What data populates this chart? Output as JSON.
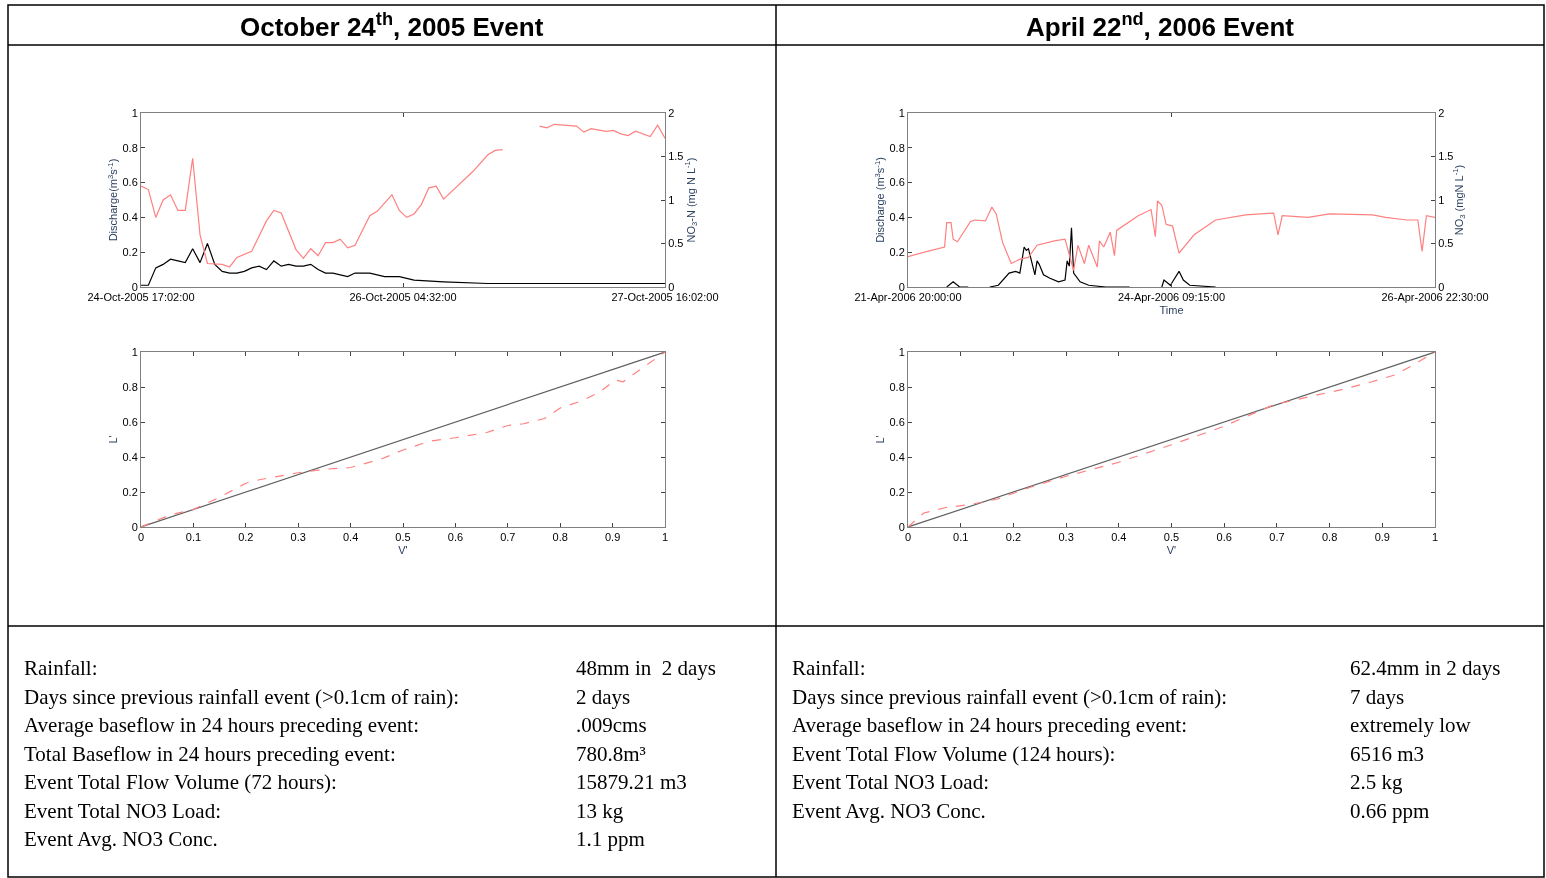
{
  "chart_data": [
    {
      "type": "line",
      "title": "October 24$^{th}$, 2005 Event",
      "ylabel": "Discharge(m$^{3}$s$^{-1}$)",
      "y2label": "NO$_{3}$-N (mg N L$^{-1}$)",
      "xlim": [
        "2005-10-24T17:02",
        "2005-10-27T16:02"
      ],
      "xticks": [
        {
          "value": "2005-10-24T17:02",
          "label": "24-Oct-2005 17:02:00"
        },
        {
          "value": "2005-10-26T04:32",
          "label": "26-Oct-2005 04:32:00"
        },
        {
          "value": "2005-10-27T16:02",
          "label": "27-Oct-2005 16:02:00"
        }
      ],
      "ylim": [
        0,
        1
      ],
      "yticks": [
        0,
        0.2,
        0.4,
        0.6,
        0.8,
        1
      ],
      "y2lim": [
        0,
        2
      ],
      "y2ticks": [
        0,
        0.5,
        1,
        1.5,
        2
      ],
      "series": [
        {
          "color": "#000000",
          "x": [
            "2005-10-24T17:02",
            "2005-10-24T18:02",
            "2005-10-24T19:02",
            "2005-10-24T20:02",
            "2005-10-24T21:02",
            "2005-10-24T22:02",
            "2005-10-24T23:02",
            "2005-10-25T00:02",
            "2005-10-25T01:02",
            "2005-10-25T02:02",
            "2005-10-25T03:02",
            "2005-10-25T04:02",
            "2005-10-25T05:02",
            "2005-10-25T06:02",
            "2005-10-25T07:02",
            "2005-10-25T08:02",
            "2005-10-25T09:02",
            "2005-10-25T10:02",
            "2005-10-25T11:02",
            "2005-10-25T12:02",
            "2005-10-25T13:02",
            "2005-10-25T14:02",
            "2005-10-25T15:02",
            "2005-10-25T16:02",
            "2005-10-25T17:02",
            "2005-10-25T18:02",
            "2005-10-25T19:02",
            "2005-10-25T21:02",
            "2005-10-25T22:02",
            "2005-10-26T00:02",
            "2005-10-26T02:02",
            "2005-10-26T04:02",
            "2005-10-26T06:02",
            "2005-10-26T10:02",
            "2005-10-26T16:02",
            "2005-10-27T00:02",
            "2005-10-27T10:02",
            "2005-10-27T16:02"
          ],
          "values": [
            0.01,
            0.01,
            0.11,
            0.13,
            0.16,
            0.15,
            0.14,
            0.22,
            0.14,
            0.25,
            0.13,
            0.09,
            0.08,
            0.08,
            0.09,
            0.11,
            0.12,
            0.1,
            0.15,
            0.12,
            0.13,
            0.12,
            0.12,
            0.13,
            0.1,
            0.08,
            0.08,
            0.06,
            0.08,
            0.08,
            0.06,
            0.06,
            0.04,
            0.03,
            0.02,
            0.02,
            0.02,
            0.02
          ]
        },
        {
          "color": "#ff8080",
          "axis": "y2",
          "x": [
            "2005-10-24T17:02",
            "2005-10-24T18:02",
            "2005-10-24T19:02",
            "2005-10-24T20:02",
            "2005-10-24T21:02",
            "2005-10-24T22:02",
            "2005-10-24T23:02",
            "2005-10-25T00:02",
            "2005-10-25T01:02",
            "2005-10-25T02:02",
            "2005-10-25T04:02",
            "2005-10-25T05:02",
            "2005-10-25T06:02",
            "2005-10-25T08:02",
            "2005-10-25T10:02",
            "2005-10-25T11:02",
            "2005-10-25T12:02",
            "2005-10-25T14:02",
            "2005-10-25T15:02",
            "2005-10-25T16:02",
            "2005-10-25T17:02",
            "2005-10-25T18:02",
            "2005-10-25T19:02",
            "2005-10-25T20:02",
            "2005-10-25T21:02",
            "2005-10-25T22:02",
            "2005-10-26T00:02",
            "2005-10-26T01:02",
            "2005-10-26T03:02",
            "2005-10-26T04:02",
            "2005-10-26T05:02",
            "2005-10-26T06:02",
            "2005-10-26T07:02",
            "2005-10-26T08:02",
            "2005-10-26T09:02",
            "2005-10-26T10:02",
            "2005-10-26T14:02",
            "2005-10-26T16:02",
            "2005-10-26T17:02",
            "2005-10-26T18:02",
            "2005-10-26T21:02",
            "2005-10-26T23:02",
            "2005-10-27T00:02",
            "2005-10-27T01:02",
            "2005-10-27T04:02",
            "2005-10-27T05:02",
            "2005-10-27T06:02",
            "2005-10-27T08:02",
            "2005-10-27T09:02",
            "2005-10-27T10:02",
            "2005-10-27T11:02",
            "2005-10-27T12:02",
            "2005-10-27T14:02",
            "2005-10-27T15:02",
            "2005-10-27T16:02"
          ],
          "values": [
            1.16,
            1.12,
            0.8,
            1.0,
            1.06,
            0.88,
            0.88,
            1.48,
            0.6,
            0.27,
            0.26,
            0.23,
            0.34,
            0.41,
            0.76,
            0.88,
            0.85,
            0.43,
            0.33,
            0.44,
            0.36,
            0.51,
            0.51,
            0.55,
            0.45,
            0.48,
            0.82,
            0.87,
            1.06,
            0.88,
            0.8,
            0.84,
            0.95,
            1.14,
            1.16,
            1.01,
            1.33,
            1.52,
            1.57,
            1.58,
            null,
            1.85,
            1.83,
            1.87,
            1.85,
            1.78,
            1.82,
            1.79,
            1.8,
            1.76,
            1.74,
            1.79,
            1.73,
            1.86,
            1.71
          ]
        }
      ]
    },
    {
      "type": "line",
      "title": "April 22$^{nd}$, 2006 Event",
      "xlabel": "Time",
      "ylabel": "Discharge (m$^{3}$s$^{-1}$)",
      "y2label": "NO$_{3}$ (mgN L$^{-1}$)",
      "xlim": [
        "2006-04-21T20:00",
        "2006-04-26T22:30"
      ],
      "xticks": [
        {
          "value": "2006-04-21T20:00",
          "label": "21-Apr-2006 20:00:00"
        },
        {
          "value": "2006-04-24T09:15",
          "label": "24-Apr-2006 09:15:00"
        },
        {
          "value": "2006-04-26T22:30",
          "label": "26-Apr-2006 22:30:00"
        }
      ],
      "ylim": [
        0,
        1
      ],
      "yticks": [
        0,
        0.2,
        0.4,
        0.6,
        0.8,
        1
      ],
      "y2lim": [
        0,
        2
      ],
      "y2ticks": [
        0,
        0.5,
        1,
        1.5,
        2
      ],
      "series": [
        {
          "color": "#ff8080",
          "axis": "y2",
          "x": [
            "2006-04-21T20:00",
            "2006-04-22T00:30",
            "2006-04-22T04:30",
            "2006-04-22T05:00",
            "2006-04-22T06:00",
            "2006-04-22T06:30",
            "2006-04-22T07:30",
            "2006-04-22T10:30",
            "2006-04-22T11:30",
            "2006-04-22T14:00",
            "2006-04-22T15:30",
            "2006-04-22T16:30",
            "2006-04-22T18:00",
            "2006-04-22T20:00",
            "2006-04-22T22:00",
            "2006-04-23T00:00",
            "2006-04-23T02:00",
            "2006-04-23T06:00",
            "2006-04-23T08:30",
            "2006-04-23T10:30",
            "2006-04-23T11:30",
            "2006-04-23T13:00",
            "2006-04-23T14:00",
            "2006-04-23T16:00",
            "2006-04-23T16:30",
            "2006-04-23T17:30",
            "2006-04-23T19:00",
            "2006-04-23T20:00",
            "2006-04-23T20:30",
            "2006-04-24T01:30",
            "2006-04-24T04:30",
            "2006-04-24T05:30",
            "2006-04-24T06:00",
            "2006-04-24T07:00",
            "2006-04-24T08:00",
            "2006-04-24T09:30",
            "2006-04-24T11:00",
            "2006-04-24T14:30",
            "2006-04-24T19:30",
            "2006-04-25T02:30",
            "2006-04-25T09:00",
            "2006-04-25T10:00",
            "2006-04-25T11:00",
            "2006-04-25T17:00",
            "2006-04-25T22:00",
            "2006-04-26T08:00",
            "2006-04-26T11:00",
            "2006-04-26T16:00",
            "2006-04-26T18:30",
            "2006-04-26T19:30",
            "2006-04-26T20:30",
            "2006-04-26T22:30"
          ],
          "values": [
            0.35,
            0.41,
            0.46,
            0.74,
            0.74,
            0.55,
            0.52,
            0.75,
            0.77,
            0.76,
            0.92,
            0.84,
            0.51,
            0.27,
            0.32,
            0.34,
            0.48,
            0.53,
            0.55,
            0.19,
            0.48,
            0.27,
            0.48,
            0.23,
            0.53,
            0.46,
            0.63,
            0.36,
            0.65,
            0.82,
            0.89,
            0.58,
            0.99,
            0.94,
            0.72,
            0.7,
            0.39,
            0.6,
            0.77,
            0.83,
            0.85,
            0.6,
            0.82,
            0.8,
            0.84,
            0.83,
            0.8,
            0.77,
            0.77,
            0.41,
            0.82,
            0.8
          ]
        },
        {
          "color": "#000000",
          "x": [
            "2006-04-22T05:00",
            "2006-04-22T06:30",
            "2006-04-22T08:00",
            "2006-04-22T10:00",
            "2006-04-22T12:00",
            "2006-04-22T15:00",
            "2006-04-22T17:00",
            "2006-04-22T19:30",
            "2006-04-22T21:00",
            "2006-04-22T22:00",
            "2006-04-22T23:00",
            "2006-04-22T23:30",
            "2006-04-23T00:00",
            "2006-04-23T00:30",
            "2006-04-23T01:30",
            "2006-04-23T02:00",
            "2006-04-23T02:30",
            "2006-04-23T03:30",
            "2006-04-23T05:00",
            "2006-04-23T07:00",
            "2006-04-23T08:30",
            "2006-04-23T09:00",
            "2006-04-23T09:30",
            "2006-04-23T10:00",
            "2006-04-23T10:30",
            "2006-04-23T12:00",
            "2006-04-23T14:00",
            "2006-04-23T18:00",
            "2006-04-23T23:30",
            "2006-04-24T03:00",
            "2006-04-24T07:00",
            "2006-04-24T07:30",
            "2006-04-24T09:00",
            "2006-04-24T09:30",
            "2006-04-24T11:00",
            "2006-04-24T12:00",
            "2006-04-24T13:30",
            "2006-04-24T19:30"
          ],
          "values": [
            0.0,
            0.03,
            0.0,
            0.0,
            null,
            0.0,
            0.01,
            0.08,
            0.09,
            0.08,
            0.23,
            0.21,
            0.22,
            0.17,
            0.07,
            0.15,
            0.13,
            0.07,
            0.05,
            0.03,
            0.04,
            0.15,
            0.12,
            0.34,
            0.08,
            0.03,
            0.01,
            0.0,
            0.0,
            null,
            0.0,
            0.04,
            0.01,
            0.03,
            0.09,
            0.04,
            0.01,
            0.0
          ]
        }
      ]
    },
    {
      "type": "line",
      "xlabel": "V'",
      "ylabel": "L'",
      "xlim": [
        0,
        1
      ],
      "xticks": [
        0,
        0.1,
        0.2,
        0.3,
        0.4,
        0.5,
        0.6,
        0.7,
        0.8,
        0.9,
        1
      ],
      "ylim": [
        0,
        1
      ],
      "yticks": [
        0,
        0.2,
        0.4,
        0.6,
        0.8,
        1
      ],
      "series": [
        {
          "color": "#606060",
          "line_style": "solid",
          "x": [
            0,
            1
          ],
          "values": [
            0,
            1
          ]
        },
        {
          "color": "#ff8080",
          "line_style": "dashed",
          "x": [
            0,
            0.056,
            0.1,
            0.15,
            0.2,
            0.226,
            0.3,
            0.35,
            0.4,
            0.46,
            0.5,
            0.55,
            0.6,
            0.66,
            0.7,
            0.73,
            0.77,
            0.8,
            0.84,
            0.875,
            0.905,
            0.92,
            1
          ],
          "values": [
            0,
            0.07,
            0.1,
            0.17,
            0.25,
            0.27,
            0.31,
            0.33,
            0.34,
            0.39,
            0.44,
            0.49,
            0.51,
            0.54,
            0.58,
            0.59,
            0.62,
            0.68,
            0.72,
            0.77,
            0.84,
            0.83,
            1
          ]
        }
      ]
    },
    {
      "type": "line",
      "xlabel": "V'",
      "ylabel": "L'",
      "xlim": [
        0,
        1
      ],
      "xticks": [
        0,
        0.1,
        0.2,
        0.3,
        0.4,
        0.5,
        0.6,
        0.7,
        0.8,
        0.9,
        1
      ],
      "ylim": [
        0,
        1
      ],
      "yticks": [
        0,
        0.2,
        0.4,
        0.6,
        0.8,
        1
      ],
      "series": [
        {
          "color": "#606060",
          "line_style": "solid",
          "x": [
            0,
            1
          ],
          "values": [
            0,
            1
          ]
        },
        {
          "color": "#ff8080",
          "line_style": "dashed",
          "x": [
            0,
            0.03,
            0.07,
            0.12,
            0.17,
            0.235,
            0.3,
            0.4,
            0.5,
            0.595,
            0.695,
            0.77,
            0.83,
            0.88,
            0.925,
            0.955,
            1
          ],
          "values": [
            0,
            0.08,
            0.11,
            0.13,
            0.16,
            0.23,
            0.29,
            0.37,
            0.47,
            0.57,
            0.7,
            0.75,
            0.79,
            0.83,
            0.87,
            0.92,
            1
          ]
        }
      ]
    },
    {
      "type": "other",
      "annotations": [
        "Rainfall:",
        "48mm in  2 days",
        "Days since previous rainfall event (>0.1cm of rain):",
        "2 days",
        "Average baseflow in 24 hours preceding event:",
        ".009cms",
        "Total Baseflow in 24 hours preceding event:",
        "780.8m³",
        "Event Total Flow Volume (72 hours):",
        "15879.21 m3",
        "Event Total NO3 Load:",
        "13 kg",
        "Event Avg. NO3 Conc.",
        "1.1 ppm"
      ]
    },
    {
      "type": "other",
      "annotations": [
        "Rainfall:",
        "62.4mm in 2 days",
        "Days since previous rainfall event (>0.1cm of rain):",
        "7 days",
        "Average baseflow in 24 hours preceding event:",
        "extremely low",
        "Event Total Flow Volume (124 hours):",
        "6516 m3",
        "Event Total NO3 Load:",
        "2.5 kg",
        "Event Avg. NO3 Conc.",
        "0.66 ppm"
      ]
    }
  ]
}
